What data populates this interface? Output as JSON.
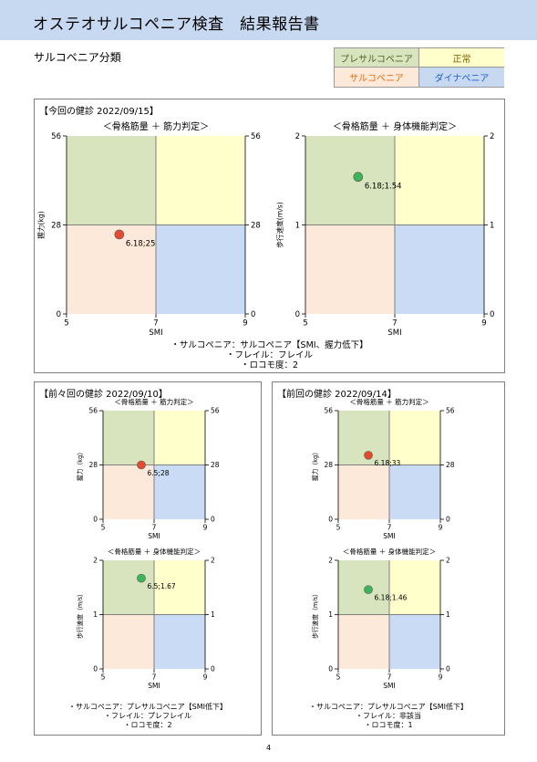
{
  "header": {
    "title": "オステオサルコペニア検査　結果報告書"
  },
  "section_title": "サルコペニア分類",
  "legend": {
    "presarcopenia": "プレサルコペニア",
    "normal": "正常",
    "sarcopenia": "サルコペニア",
    "dynapenia": "ダイナペニア"
  },
  "colors": {
    "presarcopenia": "#d7e4bd",
    "normal": "#ffffcc",
    "sarcopenia": "#fde9d9",
    "dynapenia": "#c9dbf5",
    "marker_red": "#e64a2e",
    "marker_green": "#3cb55a"
  },
  "panels": {
    "current": {
      "title": "【今回の健診 2022/09/15】",
      "summary": [
        "・サルコペニア：サルコペニア【SMI、握力低下】",
        "・フレイル：フレイル",
        "・ロコモ度：2"
      ]
    },
    "before_last": {
      "title": "【前々回の健診 2022/09/10】",
      "summary": [
        "・サルコペニア：プレサルコペニア【SMI低下】",
        "・フレイル：プレフレイル",
        "・ロコモ度：2"
      ]
    },
    "last": {
      "title": "【前回の健診 2022/09/14】",
      "summary": [
        "・サルコペニア：プレサルコペニア【SMI低下】",
        "・フレイル：非該当",
        "・ロコモ度：1"
      ]
    }
  },
  "chart_data": [
    {
      "id": "c-cur-grip",
      "type": "scatter",
      "title": "＜骨格筋量 ＋ 筋力判定＞",
      "xlabel": "SMI",
      "ylabel": "握力(kg)",
      "xlim": [
        5,
        9
      ],
      "ylim": [
        0,
        56
      ],
      "x_split": 7,
      "y_split": 28,
      "xticks": [
        5,
        7,
        9
      ],
      "yticks": [
        0,
        28,
        56
      ],
      "point": {
        "x": 6.18,
        "y": 25,
        "label": "6.18;25",
        "color": "red"
      }
    },
    {
      "id": "c-cur-speed",
      "type": "scatter",
      "title": "＜骨格筋量 ＋ 身体機能判定＞",
      "xlabel": "SMI",
      "ylabel": "歩行速度(m/s)",
      "xlim": [
        5,
        9
      ],
      "ylim": [
        0,
        2
      ],
      "x_split": 7,
      "y_split": 1,
      "xticks": [
        5,
        7,
        9
      ],
      "yticks": [
        0,
        1,
        2
      ],
      "point": {
        "x": 6.18,
        "y": 1.54,
        "label": "6.18;1.54",
        "color": "green"
      }
    },
    {
      "id": "c-bl-grip",
      "type": "scatter",
      "title": "＜骨格筋量 ＋ 筋力判定＞",
      "xlabel": "SMI",
      "ylabel": "握力（kg）",
      "xlim": [
        5,
        9
      ],
      "ylim": [
        0,
        56
      ],
      "x_split": 7,
      "y_split": 28,
      "xticks": [
        5,
        7,
        9
      ],
      "yticks": [
        0,
        28,
        56
      ],
      "point": {
        "x": 6.5,
        "y": 28,
        "label": "6.5;28",
        "color": "red"
      }
    },
    {
      "id": "c-bl-speed",
      "type": "scatter",
      "title": "＜骨格筋量 ＋ 身体機能判定＞",
      "xlabel": "SMI",
      "ylabel": "歩行速度（m/s）",
      "xlim": [
        5,
        9
      ],
      "ylim": [
        0,
        2
      ],
      "x_split": 7,
      "y_split": 1,
      "xticks": [
        5,
        7,
        9
      ],
      "yticks": [
        0,
        1,
        2
      ],
      "point": {
        "x": 6.5,
        "y": 1.67,
        "label": "6.5;1.67",
        "color": "green"
      }
    },
    {
      "id": "c-l-grip",
      "type": "scatter",
      "title": "＜骨格筋量 ＋ 筋力判定＞",
      "xlabel": "SMI",
      "ylabel": "握力（kg）",
      "xlim": [
        5,
        9
      ],
      "ylim": [
        0,
        56
      ],
      "x_split": 7,
      "y_split": 28,
      "xticks": [
        5,
        7,
        9
      ],
      "yticks": [
        0,
        28,
        56
      ],
      "point": {
        "x": 6.18,
        "y": 33,
        "label": "6.18;33",
        "color": "red"
      }
    },
    {
      "id": "c-l-speed",
      "type": "scatter",
      "title": "＜骨格筋量 ＋ 身体機能判定＞",
      "xlabel": "SMI",
      "ylabel": "歩行速度（m/s）",
      "xlim": [
        5,
        9
      ],
      "ylim": [
        0,
        2
      ],
      "x_split": 7,
      "y_split": 1,
      "xticks": [
        5,
        7,
        9
      ],
      "yticks": [
        0,
        1,
        2
      ],
      "point": {
        "x": 6.18,
        "y": 1.46,
        "label": "6.18;1.46",
        "color": "green"
      }
    }
  ],
  "page_number": "4"
}
